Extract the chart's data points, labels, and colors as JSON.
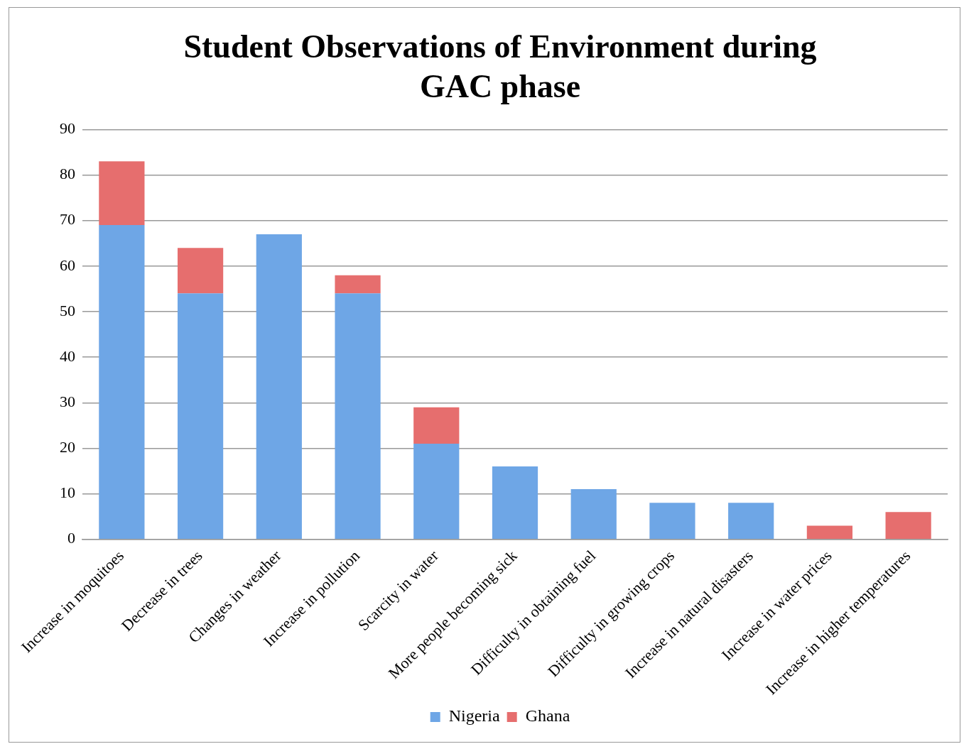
{
  "chart_data": {
    "type": "bar",
    "title": "Student Observations of Environment during GAC phase",
    "categories": [
      "Increase in moquitoes",
      "Decrease in trees",
      "Changes in weather",
      "Increase in pollution",
      "Scarcity in water",
      "More people becoming sick",
      "Difficulty in obtaining fuel",
      "Difficulty in growing crops",
      "Increase in natural disasters",
      "Increase in water prices",
      "Increase in higher temperatures"
    ],
    "series": [
      {
        "name": "Nigeria",
        "color": "#6ea6e6",
        "values": [
          69,
          54,
          67,
          54,
          21,
          16,
          11,
          8,
          8,
          0,
          0
        ]
      },
      {
        "name": "Ghana",
        "color": "#e66e6e",
        "values": [
          14,
          10,
          0,
          4,
          8,
          0,
          0,
          0,
          0,
          3,
          6
        ]
      }
    ],
    "stacked": true,
    "ylim": [
      0,
      90
    ],
    "yticks": [
      0,
      10,
      20,
      30,
      40,
      50,
      60,
      70,
      80,
      90
    ],
    "grid": "y",
    "legend": "bottom"
  }
}
